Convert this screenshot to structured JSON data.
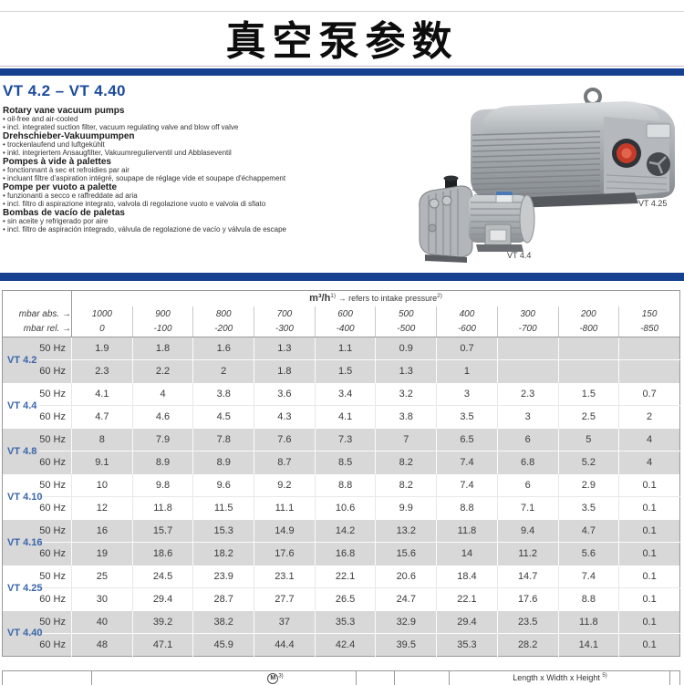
{
  "page": {
    "title": "真空泵参数"
  },
  "section": {
    "range_title": "VT 4.2 – VT 4.40",
    "descriptions": [
      {
        "heading": "Rotary vane vacuum pumps",
        "bullets": [
          "oil-free and air-cooled",
          "incl. integrated suction filter, vacuum regulating valve and blow off valve"
        ]
      },
      {
        "heading": "Drehschieber-Vakuumpumpen",
        "bullets": [
          "trockenlaufend und luftgekühlt",
          "inkl. integriertem Ansaugfilter, Vakuumregulierventil und Abblaseventil"
        ]
      },
      {
        "heading": "Pompes à vide à palettes",
        "bullets": [
          "fonctionnant à sec et refroidies par air",
          "incluant filtre d'aspiration intégré, soupape de réglage vide et soupape d'échappement"
        ]
      },
      {
        "heading": "Pompe per vuoto a palette",
        "bullets": [
          "funzionanti a secco e raffreddate ad aria",
          "incl. filtro di aspirazione integrato, valvola di regolazione vuoto e valvola di sfiato"
        ]
      },
      {
        "heading": "Bombas de vacío de paletas",
        "bullets": [
          "sin aceite y refrigerado por aire",
          "incl. filtro de aspiración integrado, válvula de regolazione de vacío y válvula de escape"
        ]
      }
    ],
    "images": [
      {
        "label": "VT 4.25"
      },
      {
        "label": "VT 4.4"
      }
    ]
  },
  "colors": {
    "accent_blue": "#17418f",
    "model_blue": "#3a66aa",
    "band_gray": "#d8d8d8"
  },
  "table": {
    "unit_header": "m³/h",
    "unit_sup": "1)",
    "unit_note": "→ refers to intake pressure",
    "unit_note_sup": "2)",
    "row_abs_label": "mbar abs. →",
    "row_rel_label": "mbar rel. →",
    "pressure_abs": [
      "1000",
      "900",
      "800",
      "700",
      "600",
      "500",
      "400",
      "300",
      "200",
      "150"
    ],
    "pressure_rel": [
      "0",
      "-100",
      "-200",
      "-300",
      "-400",
      "-500",
      "-600",
      "-700",
      "-800",
      "-850"
    ],
    "groups": [
      {
        "model": "VT 4.2",
        "rows": [
          {
            "freq": "50 Hz",
            "values": [
              "1.9",
              "1.8",
              "1.6",
              "1.3",
              "1.1",
              "0.9",
              "0.7",
              "",
              "",
              ""
            ]
          },
          {
            "freq": "60 Hz",
            "values": [
              "2.3",
              "2.2",
              "2",
              "1.8",
              "1.5",
              "1.3",
              "1",
              "",
              "",
              ""
            ]
          }
        ]
      },
      {
        "model": "VT 4.4",
        "rows": [
          {
            "freq": "50 Hz",
            "values": [
              "4.1",
              "4",
              "3.8",
              "3.6",
              "3.4",
              "3.2",
              "3",
              "2.3",
              "1.5",
              "0.7"
            ]
          },
          {
            "freq": "60 Hz",
            "values": [
              "4.7",
              "4.6",
              "4.5",
              "4.3",
              "4.1",
              "3.8",
              "3.5",
              "3",
              "2.5",
              "2"
            ]
          }
        ]
      },
      {
        "model": "VT 4.8",
        "rows": [
          {
            "freq": "50 Hz",
            "values": [
              "8",
              "7.9",
              "7.8",
              "7.6",
              "7.3",
              "7",
              "6.5",
              "6",
              "5",
              "4"
            ]
          },
          {
            "freq": "60 Hz",
            "values": [
              "9.1",
              "8.9",
              "8.9",
              "8.7",
              "8.5",
              "8.2",
              "7.4",
              "6.8",
              "5.2",
              "4"
            ]
          }
        ]
      },
      {
        "model": "VT 4.10",
        "rows": [
          {
            "freq": "50 Hz",
            "values": [
              "10",
              "9.8",
              "9.6",
              "9.2",
              "8.8",
              "8.2",
              "7.4",
              "6",
              "2.9",
              "0.1"
            ]
          },
          {
            "freq": "60 Hz",
            "values": [
              "12",
              "11.8",
              "11.5",
              "11.1",
              "10.6",
              "9.9",
              "8.8",
              "7.1",
              "3.5",
              "0.1"
            ]
          }
        ]
      },
      {
        "model": "VT 4.16",
        "rows": [
          {
            "freq": "50 Hz",
            "values": [
              "16",
              "15.7",
              "15.3",
              "14.9",
              "14.2",
              "13.2",
              "11.8",
              "9.4",
              "4.7",
              "0.1"
            ]
          },
          {
            "freq": "60 Hz",
            "values": [
              "19",
              "18.6",
              "18.2",
              "17.6",
              "16.8",
              "15.6",
              "14",
              "11.2",
              "5.6",
              "0.1"
            ]
          }
        ]
      },
      {
        "model": "VT 4.25",
        "rows": [
          {
            "freq": "50 Hz",
            "values": [
              "25",
              "24.5",
              "23.9",
              "23.1",
              "22.1",
              "20.6",
              "18.4",
              "14.7",
              "7.4",
              "0.1"
            ]
          },
          {
            "freq": "60 Hz",
            "values": [
              "30",
              "29.4",
              "28.7",
              "27.7",
              "26.5",
              "24.7",
              "22.1",
              "17.6",
              "8.8",
              "0.1"
            ]
          }
        ]
      },
      {
        "model": "VT 4.40",
        "rows": [
          {
            "freq": "50 Hz",
            "values": [
              "40",
              "39.2",
              "38.2",
              "37",
              "35.3",
              "32.9",
              "29.4",
              "23.5",
              "11.8",
              "0.1"
            ]
          },
          {
            "freq": "60 Hz",
            "values": [
              "48",
              "47.1",
              "45.9",
              "44.4",
              "42.4",
              "39.5",
              "35.3",
              "28.2",
              "14.1",
              "0.1"
            ]
          }
        ]
      }
    ]
  },
  "footer_table": {
    "motor_label": "M",
    "motor_sup": "3)",
    "dims_label": "Length x Width x Height",
    "dims_sup": "5)"
  }
}
